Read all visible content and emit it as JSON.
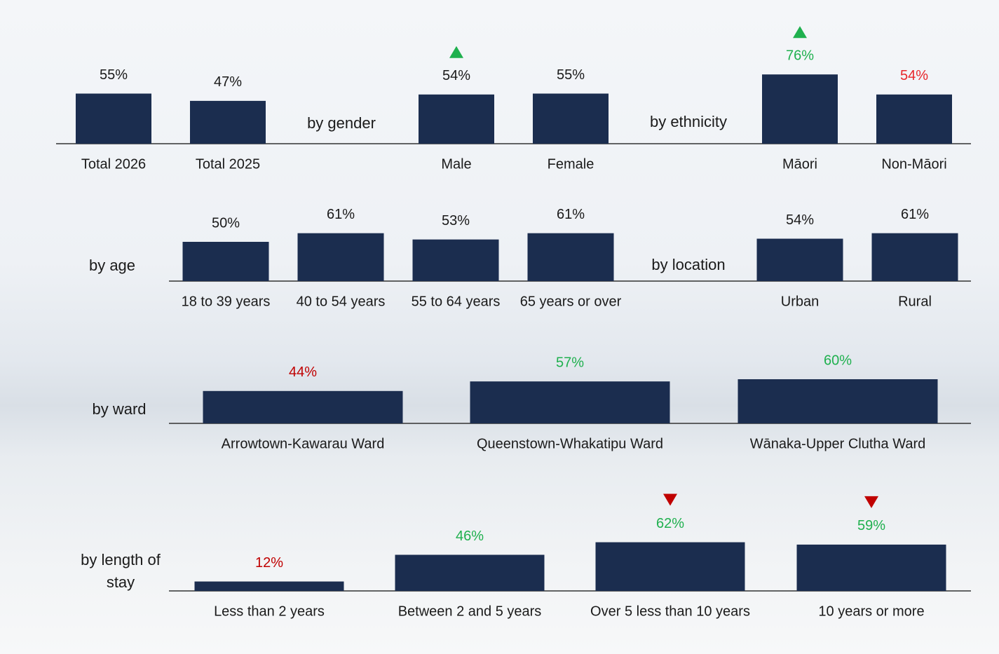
{
  "chart_data": [
    {
      "type": "bar",
      "categories": [
        "Total 2026",
        "Total 2025"
      ],
      "values": [
        55,
        47
      ],
      "value_labels": [
        "55%",
        "47%"
      ],
      "label_colors": [
        "#1a1a1a",
        "#1a1a1a"
      ],
      "markers": [
        null,
        null
      ],
      "color": "#1b2d4f",
      "ylim": [
        0,
        100
      ]
    },
    {
      "type": "bar",
      "title": "by gender",
      "categories": [
        "Male",
        "Female"
      ],
      "values": [
        54,
        55
      ],
      "value_labels": [
        "54%",
        "55%"
      ],
      "label_colors": [
        "#1a1a1a",
        "#1a1a1a"
      ],
      "markers": [
        "up",
        null
      ],
      "color": "#1b2d4f",
      "ylim": [
        0,
        100
      ]
    },
    {
      "type": "bar",
      "title": "by ethnicity",
      "categories": [
        "Māori",
        "Non-Māori"
      ],
      "values": [
        76,
        54
      ],
      "value_labels": [
        "76%",
        "54%"
      ],
      "label_colors": [
        "#1fb04e",
        "#e8262b"
      ],
      "markers": [
        "up",
        null
      ],
      "color": "#1b2d4f",
      "ylim": [
        0,
        100
      ]
    },
    {
      "type": "bar",
      "title": "by age",
      "categories": [
        "18 to 39 years",
        "40 to 54 years",
        "55 to 64 years",
        "65 years or over"
      ],
      "values": [
        50,
        61,
        53,
        61
      ],
      "value_labels": [
        "50%",
        "61%",
        "53%",
        "61%"
      ],
      "label_colors": [
        "#1a1a1a",
        "#1a1a1a",
        "#1a1a1a",
        "#1a1a1a"
      ],
      "markers": [
        null,
        null,
        null,
        null
      ],
      "color": "#1b2d4f",
      "ylim": [
        0,
        100
      ]
    },
    {
      "type": "bar",
      "title": "by location",
      "categories": [
        "Urban",
        "Rural"
      ],
      "values": [
        54,
        61
      ],
      "value_labels": [
        "54%",
        "61%"
      ],
      "label_colors": [
        "#1a1a1a",
        "#1a1a1a"
      ],
      "markers": [
        null,
        null
      ],
      "color": "#1b2d4f",
      "ylim": [
        0,
        100
      ]
    },
    {
      "type": "bar",
      "title": "by ward",
      "categories": [
        "Arrowtown-Kawarau Ward",
        "Queenstown-Whakatipu Ward",
        "Wānaka-Upper Clutha Ward"
      ],
      "values": [
        44,
        57,
        60
      ],
      "value_labels": [
        "44%",
        "57%",
        "60%"
      ],
      "label_colors": [
        "#c00000",
        "#1fb04e",
        "#1fb04e"
      ],
      "markers": [
        null,
        null,
        null
      ],
      "color": "#1b2d4f",
      "ylim": [
        0,
        100
      ]
    },
    {
      "type": "bar",
      "title": "by length of stay",
      "categories": [
        "Less than 2 years",
        "Between 2 and 5 years",
        "Over 5 less than 10 years",
        "10 years or more"
      ],
      "values": [
        12,
        46,
        62,
        59
      ],
      "value_labels": [
        "12%",
        "46%",
        "62%",
        "59%"
      ],
      "label_colors": [
        "#c00000",
        "#1fb04e",
        "#1fb04e",
        "#1fb04e"
      ],
      "markers": [
        null,
        null,
        "down",
        "down"
      ],
      "color": "#1b2d4f",
      "ylim": [
        0,
        100
      ]
    }
  ]
}
